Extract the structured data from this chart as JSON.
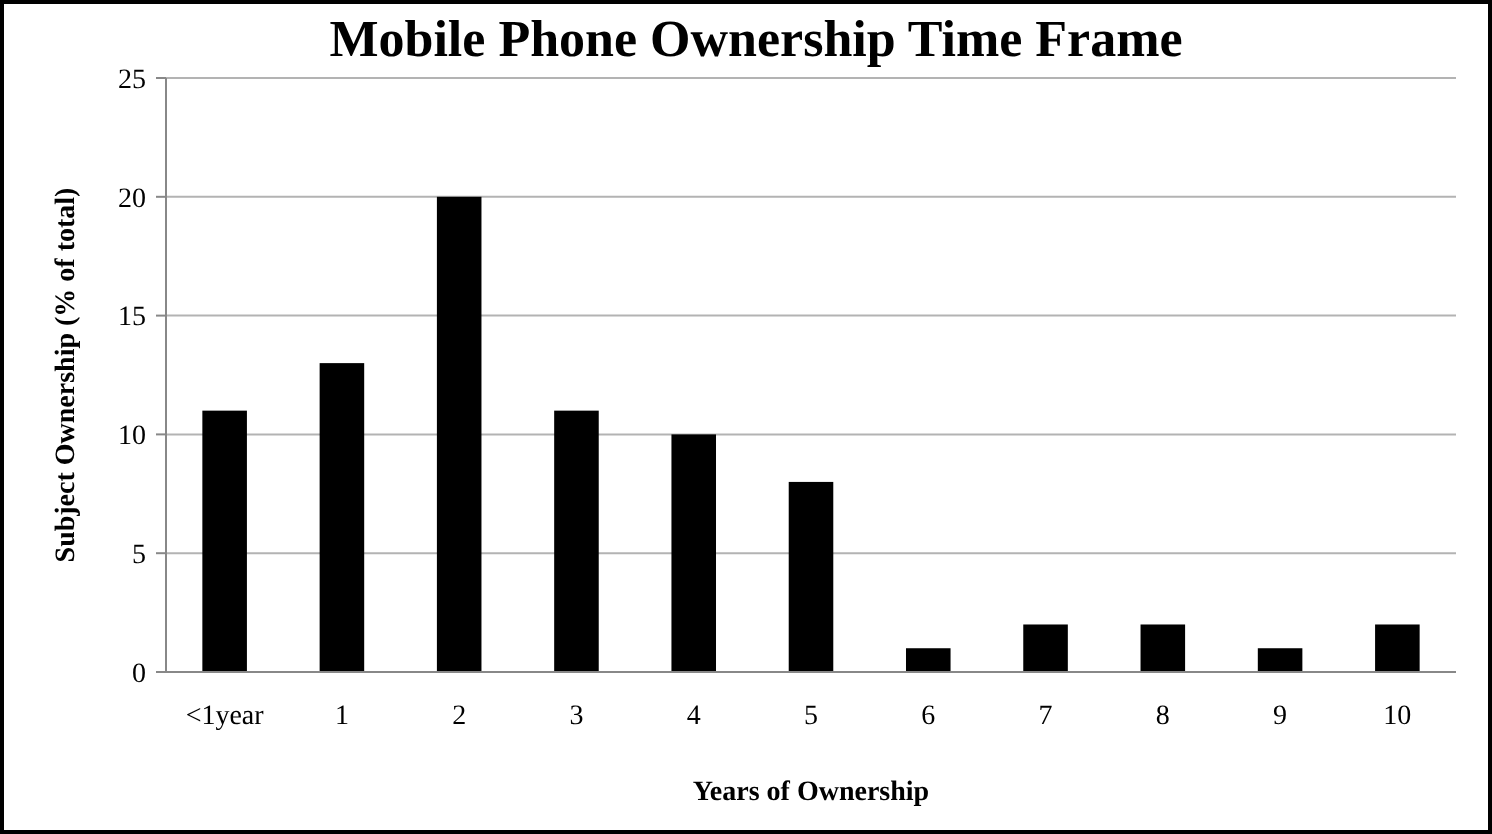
{
  "chart_data": {
    "type": "bar",
    "title": "Mobile Phone Ownership Time Frame",
    "xlabel": "Years of Ownership",
    "ylabel": "Subject Ownership (% of total)",
    "categories": [
      "<1year",
      "1",
      "2",
      "3",
      "4",
      "5",
      "6",
      "7",
      "8",
      "9",
      "10"
    ],
    "values": [
      11,
      13,
      20,
      11,
      10,
      8,
      1,
      2,
      2,
      1,
      2
    ],
    "color": "#000000",
    "ylim": [
      0,
      25
    ],
    "yticks": [
      0,
      5,
      10,
      15,
      20,
      25
    ],
    "grid": "y"
  }
}
